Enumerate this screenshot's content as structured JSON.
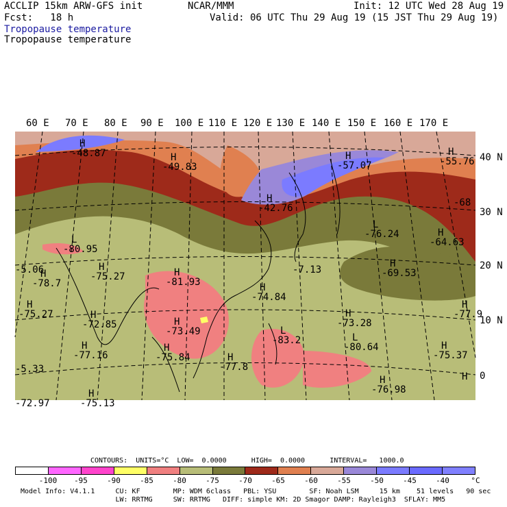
{
  "header": {
    "model_title": "ACCLIP 15km ARW-GFS init",
    "org": "NCAR/MMM",
    "init": "Init: 12 UTC Wed 28 Aug 19",
    "fcst": "Fcst:   18 h",
    "valid": "Valid: 06 UTC Thu 29 Aug 19 (15 JST Thu 29 Aug 19)",
    "field_label_1": "Tropopause temperature",
    "field_label_2": "Tropopause temperature"
  },
  "axes": {
    "lon_labels": [
      "60 E",
      "70 E",
      "80 E",
      "90 E",
      "100 E",
      "110 E",
      "120 E",
      "130 E",
      "140 E",
      "150 E",
      "160 E",
      "170 E"
    ],
    "lat_labels": [
      "40 N",
      "30 N",
      "20 N",
      "10 N",
      "0"
    ]
  },
  "map_labels": [
    {
      "letter": "H",
      "value": "-48.87"
    },
    {
      "letter": "H",
      "value": "-49.83"
    },
    {
      "letter": "H",
      "value": "-57.07"
    },
    {
      "letter": "H",
      "value": "-55.76"
    },
    {
      "letter": "",
      "value": "-68"
    },
    {
      "letter": "H",
      "value": "-42.76"
    },
    {
      "letter": "L",
      "value": "-76.24"
    },
    {
      "letter": "H",
      "value": "-64.63"
    },
    {
      "letter": "L",
      "value": "-80.95"
    },
    {
      "letter": "",
      "value": "-5.06"
    },
    {
      "letter": "",
      "value": "-7.13"
    },
    {
      "letter": "H",
      "value": "-69.53"
    },
    {
      "letter": "H",
      "value": "-78.7"
    },
    {
      "letter": "H",
      "value": "-75.27"
    },
    {
      "letter": "H",
      "value": "-81.93"
    },
    {
      "letter": "H",
      "value": "-74.84"
    },
    {
      "letter": "H",
      "value": "-75.27"
    },
    {
      "letter": "H",
      "value": "-72.85"
    },
    {
      "letter": "H",
      "value": "-73.28"
    },
    {
      "letter": "H",
      "value": "-77.9"
    },
    {
      "letter": "H",
      "value": "-73.49"
    },
    {
      "letter": "L",
      "value": "-83.2"
    },
    {
      "letter": "",
      "value": "-5.33"
    },
    {
      "letter": "H",
      "value": "-77.16"
    },
    {
      "letter": "H",
      "value": "-75.84"
    },
    {
      "letter": "H",
      "value": "-77.8"
    },
    {
      "letter": "L",
      "value": "-80.64"
    },
    {
      "letter": "H",
      "value": "-75.37"
    },
    {
      "letter": "",
      "value": "-72.97"
    },
    {
      "letter": "H",
      "value": "-75.13"
    },
    {
      "letter": "H",
      "value": "-76.98"
    },
    {
      "letter": "H",
      "value": ""
    }
  ],
  "contours": {
    "text": "CONTOURS:  UNITS=°C  LOW=  0.0000      HIGH=  0.0000      INTERVAL=   1000.0"
  },
  "legend": {
    "colors": [
      "#ffffff",
      "#ff66ff",
      "#ff44cc",
      "#ffff66",
      "#f08080",
      "#b8bd78",
      "#7a7a3a",
      "#9e2a1a",
      "#e08050",
      "#d8a898",
      "#9a88d8",
      "#7b7bff",
      "#6a6aff",
      "#8080ff"
    ],
    "labels": [
      "-100",
      "-95",
      "-90",
      "-85",
      "-80",
      "-75",
      "-70",
      "-65",
      "-60",
      "-55",
      "-50",
      "-45",
      "-40"
    ],
    "unit": "°C"
  },
  "model_info": {
    "line1": "Model Info: V4.1.1     CU: KF        MP: WDM 6class   PBL: YSU        SF: Noah LSM     15 km    51 levels   90 sec",
    "line2": "                       LW: RRTMG     SW: RRTMG   DIFF: simple KM: 2D Smagor DAMP: Rayleigh3  SFLAY: MM5"
  }
}
